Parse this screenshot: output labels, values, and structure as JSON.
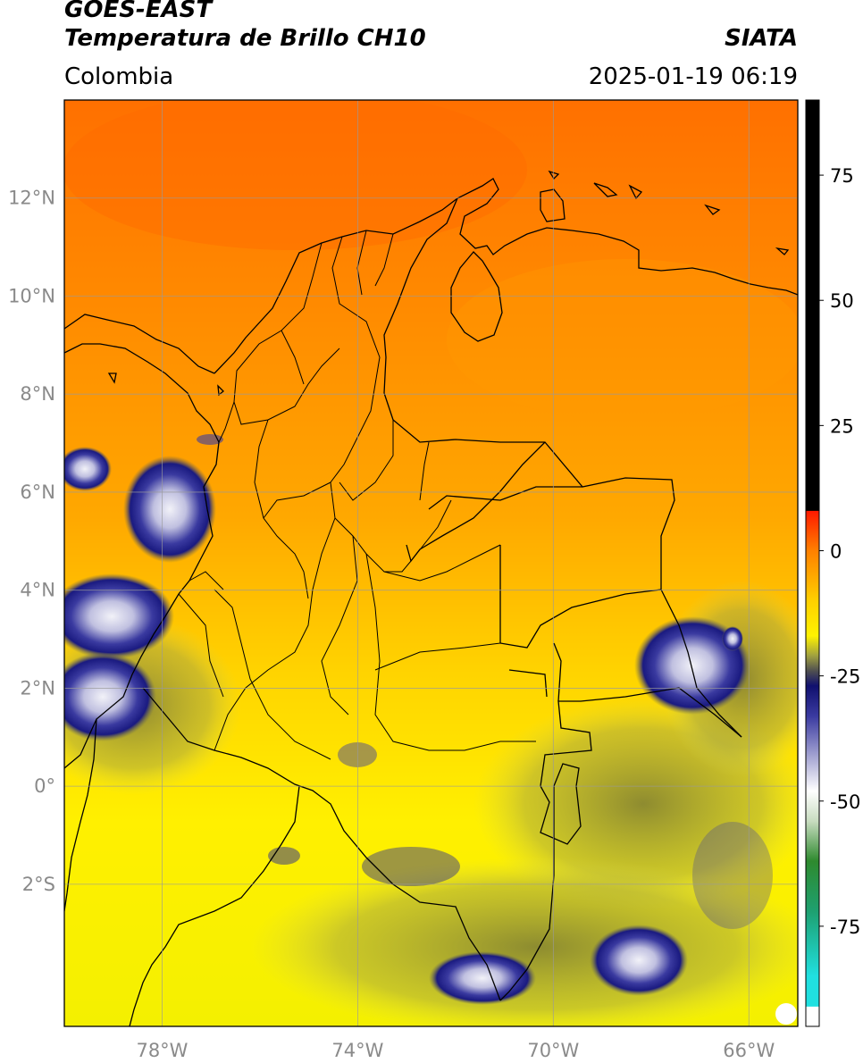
{
  "header": {
    "satellite": "GOES-EAST",
    "product": "Temperatura de Brillo CH10",
    "region": "Colombia",
    "agency": "SIATA",
    "datetime": "2025-01-19 06:19"
  },
  "map": {
    "extent": {
      "lon_min": -80.0,
      "lon_max": -65.0,
      "lat_min": -4.9,
      "lat_max": 14.0
    },
    "gridlines": true,
    "lat_ticks": [
      {
        "value": 12,
        "label": "12°N"
      },
      {
        "value": 10,
        "label": "10°N"
      },
      {
        "value": 8,
        "label": "8°N"
      },
      {
        "value": 6,
        "label": "6°N"
      },
      {
        "value": 4,
        "label": "4°N"
      },
      {
        "value": 2,
        "label": "2°N"
      },
      {
        "value": 0,
        "label": "0°"
      },
      {
        "value": -2,
        "label": "2°S"
      }
    ],
    "lon_ticks": [
      {
        "value": -78,
        "label": "78°W"
      },
      {
        "value": -74,
        "label": "74°W"
      },
      {
        "value": -70,
        "label": "70°W"
      },
      {
        "value": -66,
        "label": "66°W"
      }
    ],
    "colors": {
      "warm_north": "#ff7a00",
      "mid": "#ffb000",
      "south": "#fff200",
      "cloud_olive": "#8f8f3a",
      "cloud_navy": "#1e1e8c",
      "cloud_white": "#e8e8f0",
      "boundary": "#000000",
      "grid": "#9a9a9a"
    }
  },
  "colorbar": {
    "range": [
      -95,
      90
    ],
    "ticks": [
      {
        "value": 75,
        "label": "75"
      },
      {
        "value": 50,
        "label": "50"
      },
      {
        "value": 25,
        "label": "25"
      },
      {
        "value": 0,
        "label": "0"
      },
      {
        "value": -25,
        "label": "-25"
      },
      {
        "value": -50,
        "label": "-50"
      },
      {
        "value": -75,
        "label": "-75"
      }
    ],
    "stops": [
      {
        "value": 90,
        "color": "#000000"
      },
      {
        "value": 8,
        "color": "#000000"
      },
      {
        "value": 7.9,
        "color": "#ff1a00"
      },
      {
        "value": 0,
        "color": "#ff8000"
      },
      {
        "value": -10,
        "color": "#ffd000"
      },
      {
        "value": -17,
        "color": "#fff200"
      },
      {
        "value": -21,
        "color": "#a0a040"
      },
      {
        "value": -24,
        "color": "#505050"
      },
      {
        "value": -27,
        "color": "#10106e"
      },
      {
        "value": -33,
        "color": "#3a3aa0"
      },
      {
        "value": -42,
        "color": "#b0b0d8"
      },
      {
        "value": -48,
        "color": "#ffffff"
      },
      {
        "value": -54,
        "color": "#c8dcc0"
      },
      {
        "value": -62,
        "color": "#2e8a2e"
      },
      {
        "value": -72,
        "color": "#1ea070"
      },
      {
        "value": -85,
        "color": "#20e0e0"
      },
      {
        "value": -91,
        "color": "#20e0e0"
      },
      {
        "value": -91.1,
        "color": "#ffffff"
      },
      {
        "value": -95,
        "color": "#ffffff"
      }
    ]
  }
}
